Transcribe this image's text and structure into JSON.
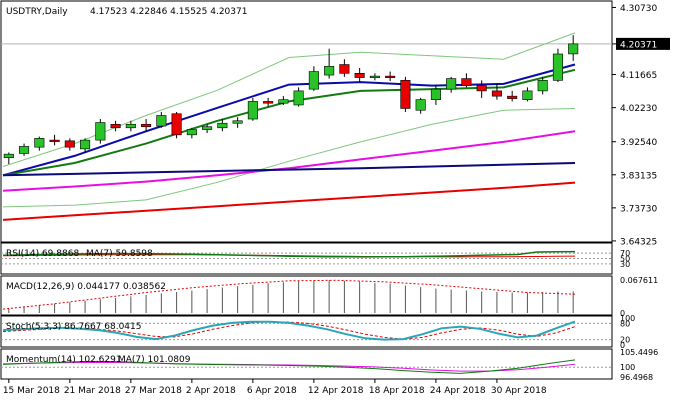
{
  "chart_data": {
    "type": "candlestick",
    "instrument": "USDTRY,Daily",
    "ohlc_label": "4.17523 4.22846 4.15525 4.20371",
    "current_price": "4.20371",
    "price_axis_labels": [
      "4.30730",
      "4.20371",
      "4.11665",
      "4.02230",
      "3.92540",
      "3.83135",
      "3.73730",
      "3.64325"
    ],
    "ylim": [
      3.643,
      4.32
    ],
    "date_labels": [
      "15 Mar 2018",
      "21 Mar 2018",
      "27 Mar 2018",
      "2 Apr 2018",
      "6 Apr 2018",
      "12 Apr 2018",
      "18 Apr 2018",
      "24 Apr 2018",
      "30 Apr 2018"
    ],
    "date_label_index": [
      0,
      4,
      8,
      12,
      16,
      20,
      24,
      28,
      32
    ],
    "candles": [
      {
        "o": 3.88,
        "h": 3.895,
        "l": 3.862,
        "c": 3.89
      },
      {
        "o": 3.892,
        "h": 3.92,
        "l": 3.885,
        "c": 3.912
      },
      {
        "o": 3.91,
        "h": 3.94,
        "l": 3.9,
        "c": 3.935
      },
      {
        "o": 3.93,
        "h": 3.945,
        "l": 3.915,
        "c": 3.928
      },
      {
        "o": 3.928,
        "h": 3.935,
        "l": 3.9,
        "c": 3.91
      },
      {
        "o": 3.905,
        "h": 3.935,
        "l": 3.895,
        "c": 3.93
      },
      {
        "o": 3.93,
        "h": 3.99,
        "l": 3.92,
        "c": 3.98
      },
      {
        "o": 3.975,
        "h": 3.985,
        "l": 3.955,
        "c": 3.965
      },
      {
        "o": 3.965,
        "h": 3.985,
        "l": 3.955,
        "c": 3.975
      },
      {
        "o": 3.975,
        "h": 3.99,
        "l": 3.955,
        "c": 3.968
      },
      {
        "o": 3.97,
        "h": 4.01,
        "l": 3.965,
        "c": 4.0
      },
      {
        "o": 4.005,
        "h": 4.01,
        "l": 3.935,
        "c": 3.945
      },
      {
        "o": 3.945,
        "h": 3.965,
        "l": 3.935,
        "c": 3.96
      },
      {
        "o": 3.96,
        "h": 3.975,
        "l": 3.95,
        "c": 3.968
      },
      {
        "o": 3.965,
        "h": 3.99,
        "l": 3.955,
        "c": 3.978
      },
      {
        "o": 3.978,
        "h": 3.995,
        "l": 3.965,
        "c": 3.985
      },
      {
        "o": 3.99,
        "h": 4.05,
        "l": 3.985,
        "c": 4.04
      },
      {
        "o": 4.04,
        "h": 4.05,
        "l": 4.025,
        "c": 4.035
      },
      {
        "o": 4.035,
        "h": 4.055,
        "l": 4.03,
        "c": 4.045
      },
      {
        "o": 4.03,
        "h": 4.08,
        "l": 4.025,
        "c": 4.07
      },
      {
        "o": 4.075,
        "h": 4.14,
        "l": 4.07,
        "c": 4.125
      },
      {
        "o": 4.115,
        "h": 4.19,
        "l": 4.105,
        "c": 4.14
      },
      {
        "o": 4.145,
        "h": 4.16,
        "l": 4.11,
        "c": 4.12
      },
      {
        "o": 4.12,
        "h": 4.135,
        "l": 4.095,
        "c": 4.108
      },
      {
        "o": 4.11,
        "h": 4.12,
        "l": 4.1,
        "c": 4.112
      },
      {
        "o": 4.112,
        "h": 4.125,
        "l": 4.098,
        "c": 4.108
      },
      {
        "o": 4.1,
        "h": 4.11,
        "l": 4.01,
        "c": 4.02
      },
      {
        "o": 4.015,
        "h": 4.05,
        "l": 4.005,
        "c": 4.045
      },
      {
        "o": 4.045,
        "h": 4.085,
        "l": 4.03,
        "c": 4.075
      },
      {
        "o": 4.075,
        "h": 4.11,
        "l": 4.065,
        "c": 4.105
      },
      {
        "o": 4.105,
        "h": 4.12,
        "l": 4.08,
        "c": 4.085
      },
      {
        "o": 4.085,
        "h": 4.1,
        "l": 4.05,
        "c": 4.07
      },
      {
        "o": 4.07,
        "h": 4.09,
        "l": 4.045,
        "c": 4.055
      },
      {
        "o": 4.055,
        "h": 4.07,
        "l": 4.04,
        "c": 4.048
      },
      {
        "o": 4.045,
        "h": 4.08,
        "l": 4.04,
        "c": 4.07
      },
      {
        "o": 4.07,
        "h": 4.11,
        "l": 4.06,
        "c": 4.1
      },
      {
        "o": 4.1,
        "h": 4.19,
        "l": 4.095,
        "c": 4.175
      },
      {
        "o": 4.17523,
        "h": 4.22846,
        "l": 4.15525,
        "c": 4.20371
      }
    ],
    "overlays": [
      {
        "color": "#0a0aa8",
        "values": [
          3.83,
          3.885,
          3.955,
          4.022,
          4.088,
          4.095,
          4.085,
          4.09,
          4.145
        ]
      },
      {
        "color": "#137a13",
        "values": [
          3.83,
          3.865,
          3.92,
          3.985,
          4.04,
          4.07,
          4.075,
          4.08,
          4.13
        ]
      },
      {
        "color": "#7ec77e",
        "values": [
          3.855,
          3.92,
          4.0,
          4.072,
          4.165,
          4.18,
          4.17,
          4.16,
          4.235
        ]
      },
      {
        "color": "#7ec77e",
        "values": [
          3.74,
          3.745,
          3.76,
          3.81,
          3.87,
          3.925,
          3.975,
          4.015,
          4.02
        ]
      },
      {
        "color": "#e60ee6",
        "values": [
          3.786,
          3.798,
          3.812,
          3.83,
          3.85,
          3.875,
          3.9,
          3.925,
          3.955
        ]
      },
      {
        "color": "#0a0a7a",
        "values": [
          3.83,
          3.834,
          3.838,
          3.842,
          3.846,
          3.85,
          3.855,
          3.86,
          3.865
        ]
      },
      {
        "color": "#e60000",
        "values": [
          3.703,
          3.716,
          3.729,
          3.742,
          3.755,
          3.768,
          3.781,
          3.794,
          3.809
        ]
      }
    ],
    "indicators": {
      "rsi": {
        "label": "RSI(14) 69.8868",
        "ma_label": "MA(7) 59.8598",
        "axis_labels": [
          "70",
          "50",
          "30"
        ]
      },
      "macd": {
        "label": "MACD(12,26,9) 0.044177 0.038562",
        "axis_labels": [
          "0.067611",
          "0"
        ],
        "histogram": [
          0.01,
          0.013,
          0.016,
          0.019,
          0.022,
          0.025,
          0.028,
          0.031,
          0.034,
          0.037,
          0.04,
          0.043,
          0.046,
          0.049,
          0.052,
          0.055,
          0.058,
          0.061,
          0.063,
          0.065,
          0.066,
          0.067,
          0.066,
          0.065,
          0.062,
          0.06,
          0.056,
          0.053,
          0.05,
          0.048,
          0.046,
          0.044,
          0.043,
          0.042,
          0.042,
          0.043,
          0.044,
          0.044177
        ],
        "signal": [
          0.008,
          0.018,
          0.03,
          0.042,
          0.052,
          0.06,
          0.066,
          0.067,
          0.064,
          0.058,
          0.05,
          0.042,
          0.038562
        ]
      },
      "stoch": {
        "label": "Stoch(5,3,3) 86.7667 68.0415",
        "axis_labels": [
          "100",
          "80",
          "20",
          "0"
        ],
        "main": [
          55,
          58,
          62,
          64,
          60,
          55,
          45,
          30,
          22,
          35,
          55,
          72,
          82,
          86,
          86,
          82,
          72,
          58,
          40,
          25,
          20,
          22,
          40,
          62,
          68,
          60,
          42,
          28,
          35,
          62,
          86.7667
        ],
        "signal": [
          50,
          54,
          58,
          62,
          63,
          58,
          52,
          42,
          32,
          30,
          42,
          58,
          72,
          82,
          86,
          85,
          80,
          70,
          56,
          40,
          28,
          22,
          28,
          45,
          58,
          63,
          55,
          40,
          32,
          45,
          68.0415
        ]
      },
      "momentum": {
        "label": "Momentum(14) 102.6291",
        "ma_label": "MA(7) 101.0809",
        "axis_labels": [
          "105.4496",
          "100",
          "96.4968"
        ],
        "main": [
          101.0,
          101.4,
          101.8,
          102.1,
          102.0,
          101.6,
          101.2,
          101.0,
          100.9,
          100.8,
          100.6,
          100.4,
          100.0,
          99.5,
          98.8,
          98.2,
          97.8,
          98.6,
          99.6,
          101.2,
          102.6291
        ],
        "signal": [
          101.2,
          101.4,
          101.6,
          101.7,
          101.7,
          101.5,
          101.3,
          101.1,
          101.0,
          100.9,
          100.8,
          100.6,
          100.4,
          100.1,
          99.6,
          99.0,
          98.6,
          98.6,
          99.1,
          100.0,
          101.0809
        ]
      }
    }
  }
}
